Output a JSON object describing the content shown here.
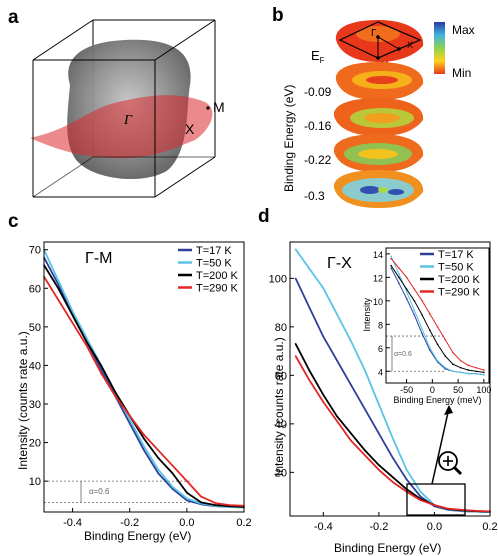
{
  "panels": {
    "a": {
      "letter": "a",
      "labels": {
        "gamma": "Γ",
        "m": "M",
        "x": "X"
      }
    },
    "b": {
      "letter": "b",
      "ylabel": "Binding Energy (eV)",
      "energies": [
        "E",
        "-0.09",
        "-0.16",
        "-0.22",
        "-0.3"
      ],
      "ef_sub": "F",
      "colorbar": {
        "max": "Max",
        "min": "Min"
      },
      "bz_labels": {
        "gamma": "Γ",
        "m": "M",
        "x": "X"
      }
    },
    "c": {
      "letter": "c",
      "direction": "Γ-M",
      "alpha_label": "α=0.6"
    },
    "d": {
      "letter": "d",
      "direction": "Γ-X",
      "alpha_label": "α=0.6"
    }
  },
  "chart_data": [
    {
      "type": "line",
      "panel": "c",
      "title": "Γ-M",
      "xlabel": "Binding Energy (eV)",
      "ylabel": "Intensity (counts rate a.u.)",
      "xlim": [
        -0.5,
        0.2
      ],
      "ylim": [
        2,
        72
      ],
      "xticks": [
        -0.4,
        -0.2,
        0.0,
        0.2
      ],
      "xticklabels": [
        "-0.4",
        "-0.2",
        "0.0",
        "0.2"
      ],
      "yticks": [
        10,
        20,
        30,
        40,
        50,
        60,
        70
      ],
      "yticklabels": [
        "10",
        "20",
        "30",
        "40",
        "50",
        "60",
        "70"
      ],
      "legend": "top-right",
      "reference_lines": [
        4.5,
        10
      ],
      "series": [
        {
          "name": "T=17 K",
          "color": "#2e3f9a",
          "x": [
            -0.5,
            -0.45,
            -0.4,
            -0.35,
            -0.3,
            -0.25,
            -0.2,
            -0.15,
            -0.1,
            -0.05,
            0.0,
            0.05,
            0.1,
            0.15,
            0.2
          ],
          "y": [
            68,
            61,
            53,
            46,
            39,
            32,
            25,
            18,
            12,
            8,
            5,
            4,
            3.5,
            3.3,
            3.2
          ]
        },
        {
          "name": "T=50 K",
          "color": "#5bc3e6",
          "x": [
            -0.5,
            -0.45,
            -0.4,
            -0.35,
            -0.3,
            -0.25,
            -0.2,
            -0.15,
            -0.1,
            -0.05,
            0.0,
            0.05,
            0.1,
            0.15,
            0.2
          ],
          "y": [
            70,
            62,
            54,
            47,
            40,
            33,
            26,
            19,
            13,
            8.5,
            5.5,
            4.2,
            3.6,
            3.3,
            3.2
          ]
        },
        {
          "name": "T=200 K",
          "color": "#000000",
          "x": [
            -0.5,
            -0.45,
            -0.4,
            -0.35,
            -0.3,
            -0.25,
            -0.2,
            -0.15,
            -0.1,
            -0.05,
            0.0,
            0.05,
            0.1,
            0.15,
            0.2
          ],
          "y": [
            66,
            60,
            53,
            46,
            40,
            33,
            27,
            21,
            16,
            12,
            7,
            4.5,
            3.8,
            3.5,
            3.3
          ]
        },
        {
          "name": "T=290 K",
          "color": "#e32626",
          "x": [
            -0.5,
            -0.45,
            -0.4,
            -0.35,
            -0.3,
            -0.25,
            -0.2,
            -0.15,
            -0.1,
            -0.05,
            0.0,
            0.05,
            0.1,
            0.15,
            0.2
          ],
          "y": [
            63,
            57,
            51,
            45,
            38,
            32,
            27,
            22,
            18,
            14,
            10,
            6,
            4.3,
            3.8,
            3.6
          ]
        }
      ]
    },
    {
      "type": "line",
      "panel": "d",
      "title": "Γ-X",
      "xlabel": "Binding Energy (eV)",
      "ylabel": "Intensity (counts rate a.u.)",
      "xlim": [
        -0.52,
        0.2
      ],
      "ylim": [
        2,
        115
      ],
      "xticks": [
        -0.4,
        -0.2,
        0.0,
        0.2
      ],
      "xticklabels": [
        "-0.4",
        "-0.2",
        "0.0",
        "0.2"
      ],
      "yticks": [
        20,
        40,
        60,
        80,
        100
      ],
      "yticklabels": [
        "20",
        "40",
        "60",
        "80",
        "100"
      ],
      "legend": "top-right",
      "series": [
        {
          "name": "T=17 K",
          "color": "#2e3f9a",
          "x": [
            -0.5,
            -0.45,
            -0.4,
            -0.35,
            -0.3,
            -0.25,
            -0.2,
            -0.15,
            -0.1,
            -0.05,
            0.0,
            0.05,
            0.1,
            0.15,
            0.2
          ],
          "y": [
            100,
            88,
            76,
            66,
            56,
            46,
            36,
            26,
            17,
            10,
            6,
            4.5,
            4,
            3.8,
            3.6
          ]
        },
        {
          "name": "T=50 K",
          "color": "#5bc3e6",
          "x": [
            -0.5,
            -0.45,
            -0.4,
            -0.35,
            -0.3,
            -0.25,
            -0.2,
            -0.15,
            -0.1,
            -0.05,
            0.0,
            0.05,
            0.1,
            0.15,
            0.2
          ],
          "y": [
            112,
            104,
            96,
            85,
            74,
            62,
            48,
            34,
            21,
            12,
            6.5,
            4.6,
            4.1,
            3.8,
            3.6
          ]
        },
        {
          "name": "T=200 K",
          "color": "#000000",
          "x": [
            -0.5,
            -0.45,
            -0.4,
            -0.35,
            -0.3,
            -0.25,
            -0.2,
            -0.15,
            -0.1,
            -0.05,
            0.0,
            0.05,
            0.1,
            0.15,
            0.2
          ],
          "y": [
            73,
            62,
            52,
            43,
            36,
            29,
            23,
            18,
            13,
            9,
            6.5,
            4.8,
            4.3,
            4,
            3.8
          ]
        },
        {
          "name": "T=290 K",
          "color": "#e32626",
          "x": [
            -0.5,
            -0.45,
            -0.4,
            -0.35,
            -0.3,
            -0.25,
            -0.2,
            -0.15,
            -0.1,
            -0.05,
            0.0,
            0.05,
            0.1,
            0.15,
            0.2
          ],
          "y": [
            68,
            58,
            49,
            41,
            33,
            27,
            21,
            16,
            12,
            8.5,
            6.5,
            5,
            4.5,
            4.1,
            3.9
          ]
        }
      ]
    },
    {
      "type": "line",
      "panel": "d-inset",
      "xlabel": "Binding Energy (meV)",
      "ylabel": "Intensity",
      "xlim": [
        -90,
        110
      ],
      "ylim": [
        3,
        14.5
      ],
      "xticks": [
        -50,
        0,
        50,
        100
      ],
      "xticklabels": [
        "-50",
        "0",
        "50",
        "100"
      ],
      "yticks": [
        4,
        6,
        8,
        10,
        12,
        14
      ],
      "yticklabels": [
        "4",
        "6",
        "8",
        "10",
        "12",
        "14"
      ],
      "reference_lines": [
        4,
        7
      ],
      "series": [
        {
          "name": "T=17 K",
          "color": "#2e3f9a",
          "x": [
            -80,
            -65,
            -50,
            -35,
            -20,
            -5,
            10,
            25,
            40,
            55,
            70,
            85,
            100
          ],
          "y": [
            12.8,
            11.5,
            10.2,
            8.8,
            7.2,
            5.8,
            4.8,
            4.2,
            4.0,
            3.9,
            3.8,
            3.8,
            3.7
          ]
        },
        {
          "name": "T=50 K",
          "color": "#5bc3e6",
          "x": [
            -80,
            -65,
            -50,
            -35,
            -20,
            -5,
            10,
            25,
            40,
            55,
            70,
            85,
            100
          ],
          "y": [
            13.8,
            12.3,
            10.8,
            9.2,
            7.6,
            6.0,
            4.9,
            4.3,
            4.0,
            3.9,
            3.8,
            3.8,
            3.7
          ]
        },
        {
          "name": "T=200 K",
          "color": "#000000",
          "x": [
            -80,
            -65,
            -50,
            -35,
            -20,
            -5,
            10,
            25,
            40,
            55,
            70,
            85,
            100
          ],
          "y": [
            13.0,
            12.0,
            11.0,
            10.0,
            8.8,
            7.5,
            6.3,
            5.3,
            4.6,
            4.3,
            4.1,
            4.0,
            3.9
          ]
        },
        {
          "name": "T=290 K",
          "color": "#e32626",
          "x": [
            -80,
            -65,
            -50,
            -35,
            -20,
            -5,
            10,
            25,
            40,
            55,
            70,
            85,
            100
          ],
          "y": [
            13.6,
            12.8,
            12.0,
            11.0,
            10.0,
            8.9,
            7.8,
            6.7,
            5.6,
            4.9,
            4.5,
            4.3,
            4.1
          ]
        }
      ]
    }
  ]
}
